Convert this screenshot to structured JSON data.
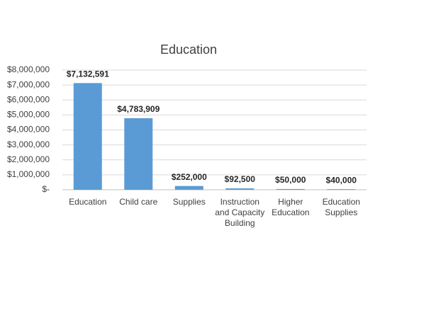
{
  "chart_data": {
    "type": "bar",
    "title": "Education",
    "categories": [
      "Education",
      "Child care",
      "Supplies",
      "Instruction and Capacity Building",
      "Higher Education",
      "Education Supplies"
    ],
    "values": [
      7132591,
      4783909,
      252000,
      92500,
      50000,
      40000
    ],
    "value_labels": [
      "$7,132,591",
      "$4,783,909",
      "$252,000",
      "$92,500",
      "$50,000",
      "$40,000"
    ],
    "color": "#5b9bd5",
    "ylim": [
      0,
      8000000
    ],
    "yticks": [
      {
        "value": 0,
        "label": "$-"
      },
      {
        "value": 1000000,
        "label": "$1,000,000"
      },
      {
        "value": 2000000,
        "label": "$2,000,000"
      },
      {
        "value": 3000000,
        "label": "$3,000,000"
      },
      {
        "value": 4000000,
        "label": "$4,000,000"
      },
      {
        "value": 5000000,
        "label": "$5,000,000"
      },
      {
        "value": 6000000,
        "label": "$6,000,000"
      },
      {
        "value": 7000000,
        "label": "$7,000,000"
      },
      {
        "value": 8000000,
        "label": "$8,000,000"
      }
    ],
    "grid": true
  }
}
